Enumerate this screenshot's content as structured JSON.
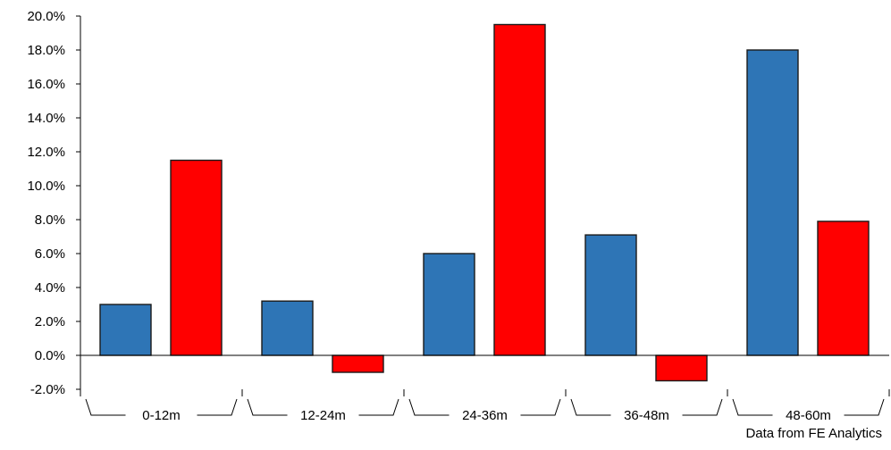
{
  "chart_data": {
    "type": "bar",
    "categories": [
      "0-12m",
      "12-24m",
      "24-36m",
      "36-48m",
      "48-60m"
    ],
    "series": [
      {
        "values": [
          3.0,
          3.2,
          6.0,
          7.1,
          18.0
        ],
        "color": "#2E75B6"
      },
      {
        "values": [
          11.5,
          -1.0,
          19.5,
          -1.5,
          7.9
        ],
        "color": "#FF0000"
      }
    ],
    "y_tick_labels": [
      "20.0%",
      "18.0%",
      "16.0%",
      "14.0%",
      "12.0%",
      "10.0%",
      "8.0%",
      "6.0%",
      "4.0%",
      "2.0%",
      "0.0%",
      "-2.0%"
    ],
    "ylim": [
      -2,
      20
    ],
    "title": "",
    "xlabel": "",
    "ylabel": "",
    "grid": false,
    "legend": "none",
    "axis_color": "#000000",
    "bar_border_color": "#1a1a1a"
  },
  "source_note": "Data from FE Analytics"
}
